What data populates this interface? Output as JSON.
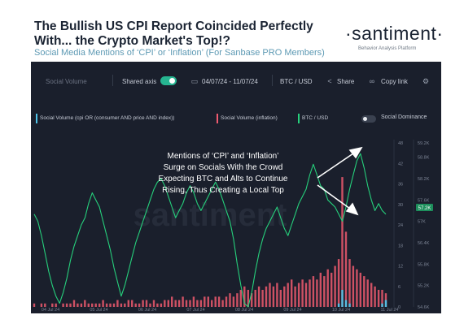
{
  "header": {
    "title": "The Bullish US CPI Report Coincided Perfectly With... the Crypto Market's Top!?",
    "subtitle": "Social Media Mentions of ‘CPI’ or ‘Inflation’ (For Sanbase PRO Members)",
    "brand": "·santiment·",
    "brand_tagline": "Behavior Analysis Platform"
  },
  "toolbar": {
    "metric_label": "Social Volume",
    "shared_axis_label": "Shared axis",
    "shared_axis_on": true,
    "date_range": "04/07/24 - 11/07/24",
    "pair": "BTC / USD",
    "share_label": "Share",
    "copy_link_label": "Copy link"
  },
  "legend": {
    "items": [
      {
        "label": "Social Volume (cpi OR (consumer AND price AND index))",
        "color": "#4fc3e8"
      },
      {
        "label": "Social Volume (inflation)",
        "color": "#ef5a6f"
      },
      {
        "label": "BTC / USD",
        "color": "#26d07c"
      }
    ],
    "social_dominance_label": "Social Dominance",
    "social_dominance_on": false
  },
  "annotation": "Mentions of ‘CPI’ and ‘Inflation’ Surge on Socials With the Crowd Expecting BTC and Alts to Continue Rising, Thus Creating a Local Top",
  "watermark": "santiment",
  "chart_data": {
    "type": "line",
    "x_ticks": [
      "04 Jul 24",
      "05 Jul 24",
      "06 Jul 24",
      "07 Jul 24",
      "08 Jul 24",
      "09 Jul 24",
      "10 Jul 24",
      "11 Jul 24"
    ],
    "x_range": [
      "04 Jul 24",
      "11 Jul 24"
    ],
    "social_axis_ticks": [
      "0",
      "6",
      "12",
      "18",
      "24",
      "30",
      "36",
      "42",
      "48"
    ],
    "price_axis_ticks": [
      "54.6K",
      "55.2K",
      "55.8K",
      "56.4K",
      "57K",
      "57.6K",
      "58.2K",
      "58.8K",
      "59.2K"
    ],
    "price_axis_range": [
      54.6,
      59.2
    ],
    "social_axis_range": [
      0,
      48
    ],
    "price_now_label": "57.2K",
    "series": [
      {
        "name": "BTC / USD",
        "color": "#26d07c",
        "y": [
          57.2,
          57.0,
          56.6,
          56.1,
          55.6,
          55.2,
          54.9,
          54.7,
          55.0,
          55.4,
          55.9,
          56.3,
          56.6,
          56.9,
          57.1,
          57.5,
          57.8,
          57.6,
          57.4,
          57.0,
          56.6,
          56.2,
          55.7,
          55.3,
          54.9,
          55.2,
          55.6,
          56.0,
          56.4,
          56.7,
          57.0,
          57.3,
          57.6,
          57.9,
          58.1,
          58.2,
          58.0,
          57.7,
          57.4,
          57.1,
          57.3,
          57.5,
          57.8,
          58.0,
          57.8,
          57.5,
          57.3,
          57.5,
          57.7,
          57.9,
          58.1,
          57.9,
          57.6,
          57.3,
          57.0,
          56.5,
          55.8,
          55.2,
          54.7,
          54.6,
          55.0,
          55.6,
          56.1,
          56.5,
          56.8,
          57.0,
          57.2,
          57.4,
          57.1,
          56.8,
          56.6,
          56.9,
          57.2,
          57.5,
          57.7,
          57.9,
          58.3,
          58.6,
          58.3,
          58.0,
          57.9,
          57.6,
          57.5,
          57.4,
          57.2,
          57.0,
          57.4,
          57.9,
          58.3,
          58.7,
          58.9,
          58.5,
          58.0,
          57.6,
          57.3,
          57.5,
          57.3,
          57.2
        ]
      },
      {
        "name": "Social Volume (inflation)",
        "color": "#ef5a6f",
        "y": [
          1,
          0,
          1,
          1,
          0,
          1,
          1,
          0,
          1,
          1,
          1,
          2,
          1,
          1,
          2,
          1,
          1,
          1,
          1,
          2,
          1,
          1,
          1,
          2,
          1,
          1,
          2,
          2,
          1,
          1,
          2,
          2,
          1,
          2,
          1,
          1,
          2,
          2,
          3,
          2,
          2,
          3,
          2,
          2,
          3,
          2,
          2,
          3,
          3,
          2,
          3,
          3,
          2,
          3,
          4,
          3,
          4,
          5,
          6,
          5,
          4,
          5,
          6,
          5,
          6,
          7,
          6,
          7,
          5,
          6,
          7,
          8,
          6,
          7,
          8,
          7,
          8,
          9,
          8,
          10,
          9,
          11,
          10,
          12,
          14,
          38,
          22,
          14,
          12,
          11,
          10,
          9,
          8,
          7,
          6,
          5,
          5,
          4
        ]
      },
      {
        "name": "Social Volume (cpi OR (consumer AND price AND index))",
        "color": "#4fc3e8",
        "y": [
          0,
          0,
          0,
          0,
          0,
          0,
          0,
          0,
          0,
          0,
          0,
          0,
          0,
          0,
          0,
          0,
          0,
          0,
          0,
          0,
          0,
          0,
          0,
          0,
          0,
          0,
          0,
          0,
          0,
          0,
          0,
          0,
          0,
          0,
          0,
          0,
          0,
          0,
          0,
          0,
          0,
          0,
          0,
          0,
          0,
          0,
          0,
          0,
          0,
          0,
          0,
          0,
          0,
          0,
          0,
          0,
          0,
          0,
          0,
          0,
          0,
          0,
          0,
          0,
          0,
          0,
          0,
          0,
          0,
          0,
          0,
          0,
          0,
          0,
          0,
          0,
          0,
          0,
          0,
          0,
          0,
          0,
          0,
          0,
          1,
          5,
          2,
          1,
          0,
          0,
          0,
          0,
          0,
          0,
          0,
          0,
          1,
          2
        ]
      }
    ],
    "legend_position": "top-left",
    "grid": false
  }
}
